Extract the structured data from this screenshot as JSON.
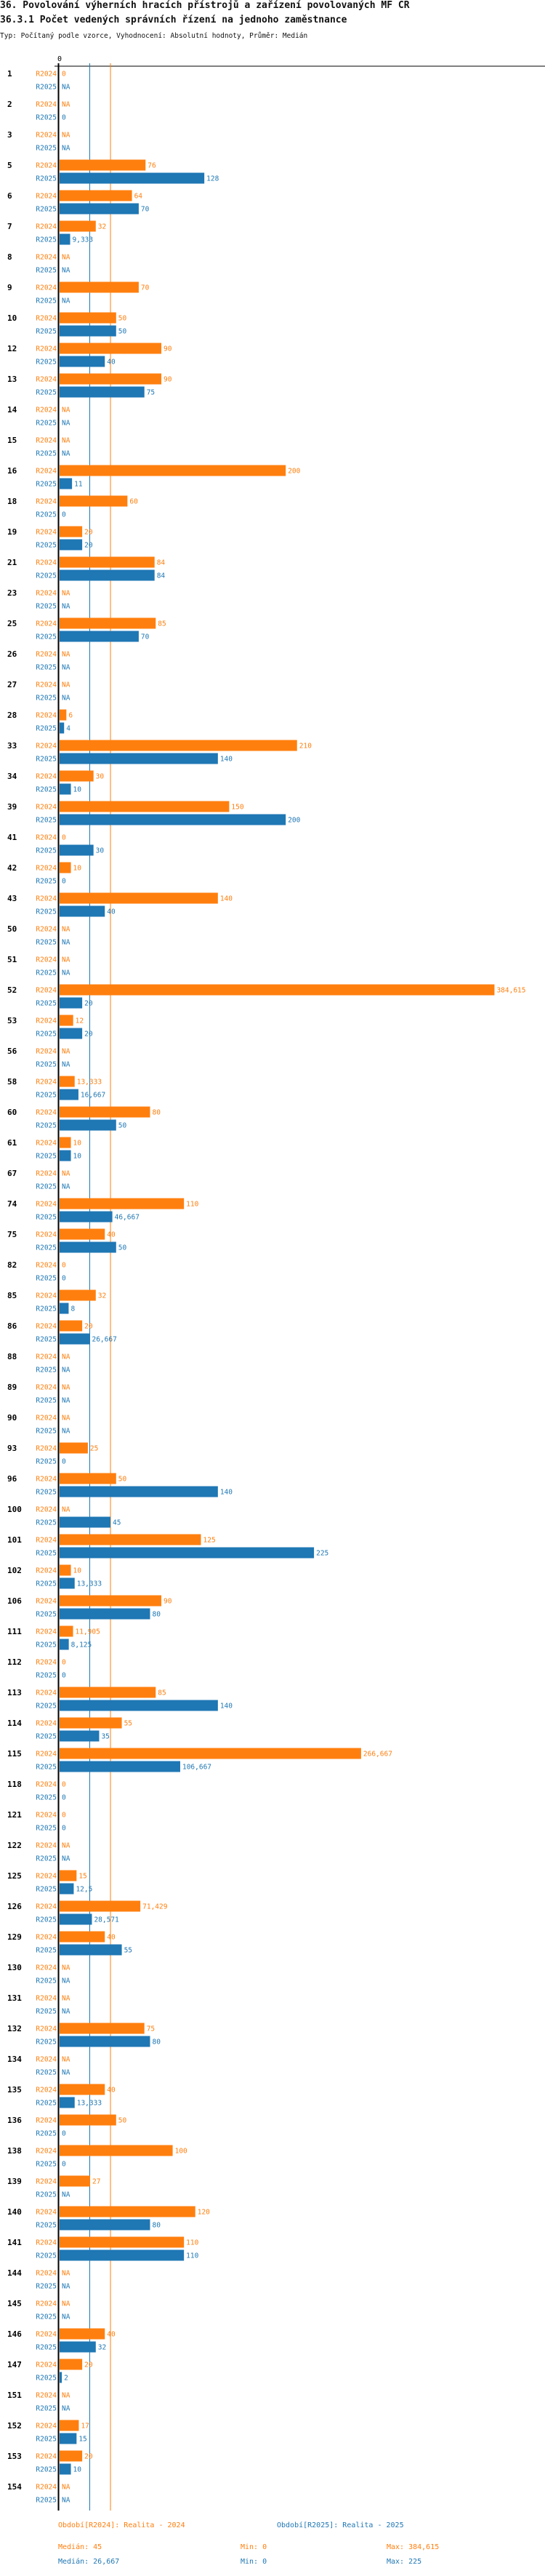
{
  "header": {
    "title": "36. Povolování výherních hracích přístrojů a zařízení povolovaných MF ČR",
    "subtitle": "36.3.1 Počet vedených správních řízení na jednoho zaměstnance",
    "info": "Typ: Počítaný podle vzorce, Vyhodnocení: Absolutní hodnoty, Průměr: Medián"
  },
  "colors": {
    "r2024": "#ff7f0e",
    "r2025": "#1f77b4",
    "axis": "#000000"
  },
  "chart_data": {
    "type": "bar",
    "orientation": "horizontal",
    "title": "36.3.1 Počet vedených správních řízení na jednoho zaměstnance",
    "xlim": [
      0,
      384.615
    ],
    "x_tick_labels": [
      "0"
    ],
    "na_label": "NA",
    "series_labels": [
      "R2024",
      "R2025"
    ],
    "categories": [
      "1",
      "2",
      "3",
      "5",
      "6",
      "7",
      "8",
      "9",
      "10",
      "12",
      "13",
      "14",
      "15",
      "16",
      "18",
      "19",
      "21",
      "23",
      "25",
      "26",
      "27",
      "28",
      "33",
      "34",
      "39",
      "41",
      "42",
      "43",
      "50",
      "51",
      "52",
      "53",
      "56",
      "58",
      "60",
      "61",
      "67",
      "74",
      "75",
      "82",
      "85",
      "86",
      "88",
      "89",
      "90",
      "93",
      "96",
      "100",
      "101",
      "102",
      "106",
      "111",
      "112",
      "113",
      "114",
      "115",
      "118",
      "121",
      "122",
      "125",
      "126",
      "129",
      "130",
      "131",
      "132",
      "134",
      "135",
      "136",
      "138",
      "139",
      "140",
      "141",
      "144",
      "145",
      "146",
      "147",
      "151",
      "152",
      "153",
      "154"
    ],
    "series": [
      {
        "name": "R2024",
        "values": [
          0,
          null,
          null,
          76,
          64,
          32,
          null,
          70,
          50,
          90,
          90,
          null,
          null,
          200,
          60,
          20,
          84,
          null,
          85,
          null,
          null,
          6,
          210,
          30,
          150,
          0,
          10,
          140,
          null,
          null,
          384.615,
          12,
          null,
          13.333,
          80,
          10,
          null,
          110,
          40,
          0,
          32,
          20,
          null,
          null,
          null,
          25,
          50,
          null,
          125,
          10,
          90,
          11.905,
          0,
          85,
          55,
          266.667,
          0,
          0,
          null,
          15,
          71.429,
          40,
          null,
          null,
          75,
          null,
          40,
          50,
          100,
          27,
          120,
          110,
          null,
          null,
          40,
          20,
          null,
          17,
          20,
          null
        ]
      },
      {
        "name": "R2025",
        "values": [
          null,
          0,
          null,
          128,
          70,
          9.333,
          null,
          null,
          50,
          40,
          75,
          null,
          null,
          11,
          0,
          20,
          84,
          null,
          70,
          null,
          null,
          4,
          140,
          10,
          200,
          30,
          0,
          40,
          null,
          null,
          20,
          20,
          null,
          16.667,
          50,
          10,
          null,
          46.667,
          50,
          0,
          8,
          26.667,
          null,
          null,
          null,
          0,
          140,
          45,
          225,
          13.333,
          80,
          8.125,
          0,
          140,
          35,
          106.667,
          0,
          0,
          null,
          12.5,
          28.571,
          55,
          null,
          null,
          80,
          null,
          13.333,
          0,
          0,
          null,
          80,
          110,
          null,
          null,
          32,
          2,
          null,
          15,
          10,
          null
        ]
      }
    ],
    "reference_lines": [
      {
        "series": "R2024",
        "stat": "median",
        "value": 45
      },
      {
        "series": "R2025",
        "stat": "median",
        "value": 26.667
      }
    ],
    "legend": {
      "r2024": "Období[R2024]: Realita - 2024",
      "r2025": "Období[R2025]: Realita - 2025"
    },
    "stats": {
      "r2024": {
        "median": "Medián: 45",
        "min": "Min: 0",
        "max": "Max: 384,615"
      },
      "r2025": {
        "median": "Medián: 26,667",
        "min": "Min: 0",
        "max": "Max: 225"
      }
    }
  }
}
